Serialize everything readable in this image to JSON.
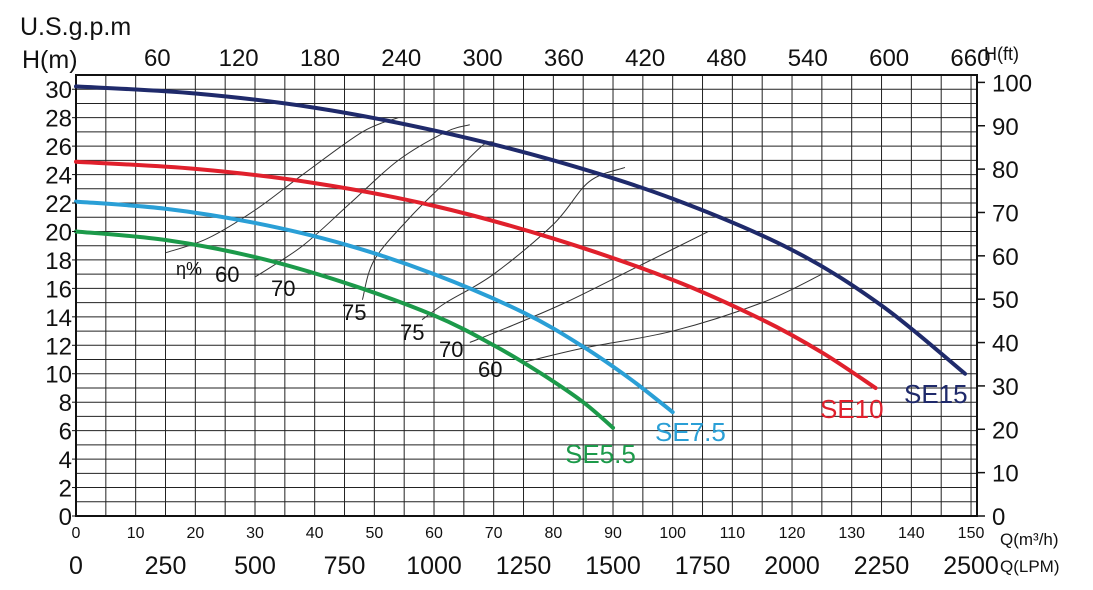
{
  "chart_data": {
    "type": "line",
    "title": "",
    "axes": {
      "left": {
        "label_unit": "U.S.g.p.m",
        "label_head": "H(m)",
        "range": [
          0,
          31
        ],
        "ticks": [
          0,
          2,
          4,
          6,
          8,
          10,
          12,
          14,
          16,
          18,
          20,
          22,
          24,
          26,
          28,
          30
        ]
      },
      "right": {
        "label": "H(ft)",
        "ticks": [
          0,
          10,
          20,
          30,
          40,
          50,
          60,
          70,
          80,
          90,
          100
        ]
      },
      "top": {
        "label": "U.S.g.p.m",
        "ticks": [
          60,
          120,
          180,
          240,
          300,
          360,
          420,
          480,
          540,
          600,
          660
        ]
      },
      "bottom_m3h": {
        "label": "Q(m³/h)",
        "range": [
          0,
          151
        ],
        "ticks": [
          0,
          10,
          20,
          30,
          40,
          50,
          60,
          70,
          80,
          90,
          100,
          110,
          120,
          130,
          140,
          150
        ]
      },
      "bottom_lpm": {
        "label": "Q(LPM)",
        "ticks": [
          0,
          250,
          500,
          750,
          1000,
          1250,
          1500,
          1750,
          2000,
          2250,
          2500
        ]
      }
    },
    "grid": true,
    "series": [
      {
        "name": "SE15",
        "color": "#1f2a6b",
        "points": [
          [
            0,
            30.2
          ],
          [
            20,
            29.7
          ],
          [
            40,
            28.7
          ],
          [
            60,
            27.1
          ],
          [
            80,
            25.0
          ],
          [
            100,
            22.3
          ],
          [
            120,
            18.7
          ],
          [
            135,
            14.8
          ],
          [
            149,
            10.0
          ]
        ]
      },
      {
        "name": "SE10",
        "color": "#e0202c",
        "points": [
          [
            0,
            24.9
          ],
          [
            20,
            24.4
          ],
          [
            40,
            23.4
          ],
          [
            60,
            21.8
          ],
          [
            80,
            19.5
          ],
          [
            100,
            16.6
          ],
          [
            115,
            13.8
          ],
          [
            125,
            11.5
          ],
          [
            134,
            9.0
          ]
        ]
      },
      {
        "name": "SE7.5",
        "color": "#2a9fd6",
        "points": [
          [
            0,
            22.1
          ],
          [
            15,
            21.6
          ],
          [
            30,
            20.6
          ],
          [
            45,
            19.1
          ],
          [
            60,
            17.0
          ],
          [
            75,
            14.3
          ],
          [
            85,
            11.9
          ],
          [
            93,
            9.6
          ],
          [
            100,
            7.3
          ]
        ]
      },
      {
        "name": "SE5.5",
        "color": "#1c9a4a",
        "points": [
          [
            0,
            20.0
          ],
          [
            15,
            19.4
          ],
          [
            30,
            18.2
          ],
          [
            45,
            16.4
          ],
          [
            60,
            14.1
          ],
          [
            70,
            12.0
          ],
          [
            78,
            10.0
          ],
          [
            85,
            8.0
          ],
          [
            90,
            6.2
          ]
        ]
      }
    ],
    "efficiency": {
      "symbol": "η%",
      "labels": [
        "60",
        "70",
        "75",
        "75",
        "70",
        "60"
      ]
    }
  }
}
